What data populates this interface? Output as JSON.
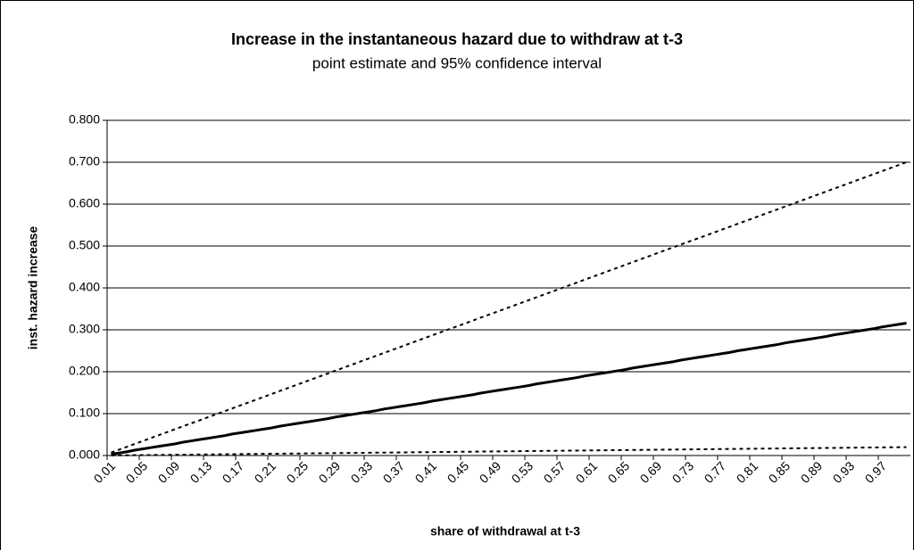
{
  "chart_data": {
    "type": "line",
    "title": "Increase in the instantaneous hazard due to withdraw at t-3",
    "subtitle": "point estimate and 95% confidence interval",
    "x_label": "share of withdrawal at t-3",
    "y_label": "inst. hazard increase",
    "categories": [
      "0.01",
      null,
      null,
      null,
      "0.05",
      null,
      null,
      null,
      "0.09",
      null,
      null,
      null,
      "0.13",
      null,
      null,
      null,
      "0.17",
      null,
      null,
      null,
      "0.21",
      null,
      null,
      null,
      "0.25",
      null,
      null,
      null,
      "0.29",
      null,
      null,
      null,
      "0.33",
      null,
      null,
      null,
      "0.37",
      null,
      null,
      null,
      "0.41",
      null,
      null,
      null,
      "0.45",
      null,
      null,
      null,
      "0.49",
      null,
      null,
      null,
      "0.53",
      null,
      null,
      null,
      "0.57",
      null,
      null,
      null,
      "0.61",
      null,
      null,
      null,
      "0.65",
      null,
      null,
      null,
      "0.69",
      null,
      null,
      null,
      "0.73",
      null,
      null,
      null,
      "0.77",
      null,
      null,
      null,
      "0.81",
      null,
      null,
      null,
      "0.85",
      null,
      null,
      null,
      "0.89",
      null,
      null,
      null,
      "0.93",
      null,
      null,
      null,
      "0.97",
      null,
      null,
      null
    ],
    "series": [
      {
        "color": "#000000",
        "style": "dotted",
        "values": [
          0.007,
          0.014,
          0.021,
          0.028,
          0.035,
          0.042,
          0.049,
          0.056,
          0.063,
          0.07,
          0.077,
          0.084,
          0.091,
          0.098,
          0.105,
          0.112,
          0.119,
          0.126,
          0.133,
          0.14,
          0.147,
          0.154,
          0.161,
          0.168,
          0.175,
          0.182,
          0.189,
          0.196,
          0.203,
          0.21,
          0.217,
          0.224,
          0.231,
          0.238,
          0.245,
          0.252,
          0.259,
          0.266,
          0.273,
          0.28,
          0.287,
          0.294,
          0.301,
          0.308,
          0.315,
          0.322,
          0.329,
          0.336,
          0.343,
          0.35,
          0.357,
          0.364,
          0.371,
          0.378,
          0.385,
          0.392,
          0.399,
          0.406,
          0.413,
          0.42,
          0.427,
          0.434,
          0.441,
          0.448,
          0.455,
          0.462,
          0.469,
          0.476,
          0.483,
          0.49,
          0.497,
          0.504,
          0.511,
          0.518,
          0.525,
          0.532,
          0.539,
          0.546,
          0.553,
          0.56,
          0.567,
          0.574,
          0.581,
          0.588,
          0.595,
          0.602,
          0.609,
          0.616,
          0.623,
          0.63,
          0.637,
          0.644,
          0.651,
          0.658,
          0.665,
          0.672,
          0.679,
          0.686,
          0.693,
          0.7
        ]
      },
      {
        "color": "#000000",
        "style": "solid",
        "values": [
          0.003,
          0.006,
          0.009,
          0.013,
          0.016,
          0.019,
          0.022,
          0.025,
          0.028,
          0.032,
          0.035,
          0.038,
          0.041,
          0.044,
          0.047,
          0.051,
          0.054,
          0.057,
          0.06,
          0.063,
          0.066,
          0.07,
          0.073,
          0.076,
          0.079,
          0.082,
          0.085,
          0.088,
          0.092,
          0.095,
          0.098,
          0.101,
          0.104,
          0.107,
          0.111,
          0.114,
          0.117,
          0.12,
          0.123,
          0.126,
          0.13,
          0.133,
          0.136,
          0.139,
          0.142,
          0.145,
          0.149,
          0.152,
          0.155,
          0.158,
          0.161,
          0.164,
          0.167,
          0.171,
          0.174,
          0.177,
          0.18,
          0.183,
          0.186,
          0.19,
          0.193,
          0.196,
          0.199,
          0.202,
          0.205,
          0.209,
          0.212,
          0.215,
          0.218,
          0.221,
          0.224,
          0.228,
          0.231,
          0.234,
          0.237,
          0.24,
          0.243,
          0.246,
          0.25,
          0.253,
          0.256,
          0.259,
          0.262,
          0.265,
          0.269,
          0.272,
          0.275,
          0.278,
          0.281,
          0.284,
          0.288,
          0.291,
          0.294,
          0.297,
          0.3,
          0.303,
          0.307,
          0.31,
          0.313,
          0.316
        ]
      },
      {
        "color": "#000000",
        "style": "dotted",
        "values": [
          0.0002,
          0.0004,
          0.0006,
          0.0008,
          0.001,
          0.0012,
          0.0014,
          0.0016,
          0.0018,
          0.002,
          0.0022,
          0.0024,
          0.0026,
          0.0028,
          0.003,
          0.0032,
          0.0034,
          0.0036,
          0.0038,
          0.004,
          0.0042,
          0.0044,
          0.0046,
          0.0048,
          0.005,
          0.0052,
          0.0054,
          0.0056,
          0.0058,
          0.006,
          0.0062,
          0.0064,
          0.0066,
          0.0068,
          0.007,
          0.0072,
          0.0074,
          0.0076,
          0.0078,
          0.008,
          0.0082,
          0.0084,
          0.0086,
          0.0088,
          0.009,
          0.0092,
          0.0094,
          0.0096,
          0.0098,
          0.01,
          0.0102,
          0.0104,
          0.0106,
          0.0108,
          0.011,
          0.0112,
          0.0114,
          0.0116,
          0.0118,
          0.012,
          0.0122,
          0.0124,
          0.0126,
          0.0128,
          0.013,
          0.0132,
          0.0134,
          0.0136,
          0.0138,
          0.014,
          0.0142,
          0.0144,
          0.0146,
          0.0148,
          0.015,
          0.0152,
          0.0154,
          0.0156,
          0.0158,
          0.016,
          0.0162,
          0.0164,
          0.0166,
          0.0168,
          0.017,
          0.0172,
          0.0174,
          0.0176,
          0.0178,
          0.018,
          0.0182,
          0.0184,
          0.0186,
          0.0188,
          0.019,
          0.0192,
          0.0194,
          0.0196,
          0.0198,
          0.02
        ]
      }
    ],
    "ylim": [
      0,
      0.8
    ],
    "yticks": [
      {
        "value": 0,
        "label": "0.000"
      },
      {
        "value": 0.1,
        "label": "0.100"
      },
      {
        "value": 0.2,
        "label": "0.200"
      },
      {
        "value": 0.3,
        "label": "0.300"
      },
      {
        "value": 0.4,
        "label": "0.400"
      },
      {
        "value": 0.5,
        "label": "0.500"
      },
      {
        "value": 0.6,
        "label": "0.600"
      },
      {
        "value": 0.7,
        "label": "0.700"
      },
      {
        "value": 0.8,
        "label": "0.800"
      }
    ],
    "grid": true
  }
}
